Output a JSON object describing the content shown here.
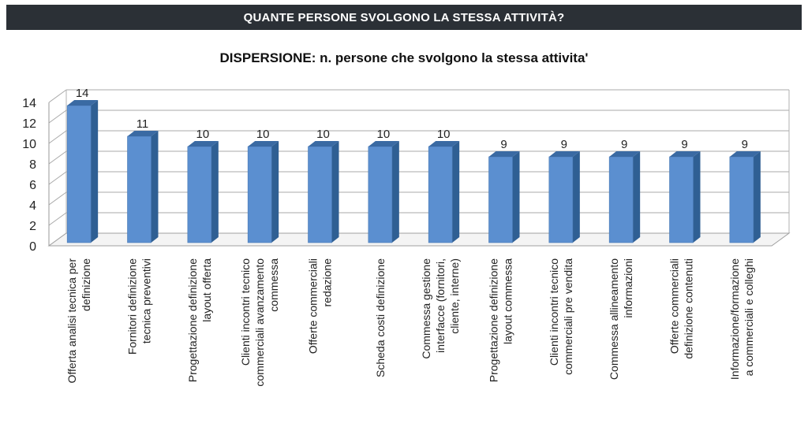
{
  "header": {
    "title": "QUANTE PERSONE SVOLGONO LA STESSA ATTIVITÀ?"
  },
  "chart_data": {
    "type": "bar",
    "title": "DISPERSIONE: n. persone che svolgono la stessa attivita'",
    "xlabel": "",
    "ylabel": "",
    "ylim": [
      0,
      14
    ],
    "yticks": [
      0,
      2,
      4,
      6,
      8,
      10,
      12,
      14
    ],
    "grid": true,
    "bar_color": "#5b8fd0",
    "categories": [
      [
        "Offerta analisi tecnica per",
        "definizione"
      ],
      [
        "Fornitori definizione",
        "tecnica preventivi"
      ],
      [
        "Progettazione definizione",
        "layout offerta"
      ],
      [
        "Clienti incontri tecnico",
        "commerciali avanzamento",
        "commessa"
      ],
      [
        "Offerte commerciali",
        "redazione"
      ],
      [
        "Scheda costi definizione"
      ],
      [
        "Commessa gestione",
        "interfacce (fornitori,",
        "cliente, interne)"
      ],
      [
        "Progettazione definizione",
        "layout commessa"
      ],
      [
        "Clienti incontri tecnico",
        "commerciali pre vendita"
      ],
      [
        "Commessa allineamento",
        "informazioni"
      ],
      [
        "Offerte commerciali",
        "definizione contenuti"
      ],
      [
        "Informazione/formazione",
        "a commerciali e colleghi"
      ]
    ],
    "values": [
      14,
      11,
      10,
      10,
      10,
      10,
      10,
      9,
      9,
      9,
      9,
      9
    ],
    "data_labels": [
      "14",
      "11",
      "10",
      "10",
      "10",
      "10",
      "10",
      "9",
      "9",
      "9",
      "9",
      "9"
    ]
  }
}
